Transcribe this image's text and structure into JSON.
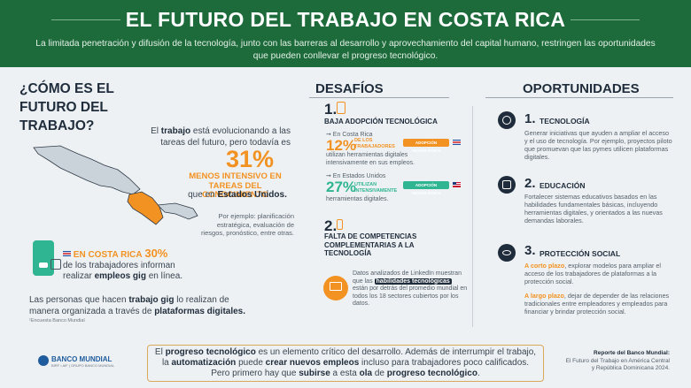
{
  "header": {
    "title": "EL FUTURO DEL TRABAJO EN COSTA RICA",
    "subtitle": "La limitada penetración y difusión de la tecnología, junto con las barreras al desarrollo y aprovechamiento del capital humano, restringen las oportunidades que pueden conllevar el progreso tecnológico."
  },
  "left": {
    "question_title": "¿CÓMO ES EL FUTURO DEL TRABAJO?",
    "intro_pre": "El ",
    "intro_bold": "trabajo",
    "intro_post": " está evolucionando a las tareas del futuro, pero todavía es",
    "big_stat": "31%",
    "big_stat_desc": "MENOS INTENSIVO EN TAREAS DEL CONOCIMIENTO",
    "compare_pre": "que en ",
    "compare_bold": "Estados Unidos.",
    "example_note": "Por ejemplo: planificación estratégica, evaluación de riesgos, pronóstico, entre otras.",
    "gig_country": "EN COSTA RICA",
    "gig_pct": "30%",
    "gig_text_pre": "de los trabajadores informan realizar ",
    "gig_text_bold": "empleos gig",
    "gig_text_post": " en línea.",
    "platforms_pre": "Las personas que hacen ",
    "platforms_bold1": "trabajo gig",
    "platforms_mid": " lo realizan de manera organizada a través de ",
    "platforms_bold2": "plataformas digitales.",
    "survey_note": "¹Encuesta Banco Mundial"
  },
  "desafios": {
    "title": "DESAFÍOS",
    "c1_num": "1.",
    "c1_title": "BAJA ADOPCIÓN TECNOLÓGICA",
    "cr_label": "➞ En Costa Rica",
    "cr_pct": "12%",
    "cr_pct_desc": "DE LOS TRABAJADORES",
    "cr_badge": "ADOPCIÓN TECNOLÓGICA",
    "cr_detail": "utilizan herramientas digitales intensivamente en sus empleos.",
    "us_label": "➞ En Estados Unidos",
    "us_pct": "27%",
    "us_pct_desc": "UTILIZAN INTENSIVAMENTE",
    "us_badge": "ADOPCIÓN TECNOLÓGICA",
    "us_detail": "herramientas digitales.",
    "c2_num": "2.",
    "c2_title": "FALTA DE COMPETENCIAS COMPLEMENTARIAS A LA TECNOLOGÍA",
    "c2_pre": "Datos analizados de LinkedIn muestran que las ",
    "c2_highlight": "habilidades tecnológicas",
    "c2_post": " están por detrás del promedio mundial en todos los 18 sectores cubiertos por los datos."
  },
  "oportunidades": {
    "title": "OPORTUNIDADES",
    "o1_num": "1.",
    "o1_head": "TECNOLOGÍA",
    "o1_body": "Generar iniciativas que ayuden a ampliar el acceso y el uso de tecnología. Por ejemplo, proyectos piloto que promuevan que las pymes utilicen plataformas digitales.",
    "o2_num": "2.",
    "o2_head": "EDUCACIÓN",
    "o2_body": "Fortalecer sistemas educativos basados en las habilidades fundamentales básicas, incluyendo herramientas digitales, y orientados a las nuevas demandas laborales.",
    "o3_num": "3.",
    "o3_head": "PROTECCIÓN SOCIAL",
    "o3_b1_lead": "A corto plazo",
    "o3_b1_rest": ", explorar modelos para ampliar el acceso de los trabajadores de plataformas a la protección social.",
    "o3_b2_lead": "A largo plazo",
    "o3_b2_rest": ", dejar de depender de las relaciones tradicionales entre empleadores y empleados para financiar y brindar protección social."
  },
  "footer": {
    "pre1": "El ",
    "bold1": "progreso tecnológico",
    "mid1": " es un elemento crítico del desarrollo. Además de interrumpir el trabajo, la ",
    "bold2": "automatización",
    "mid2": " puede ",
    "bold3": "crear nuevos empleos",
    "mid3": " incluso para trabajadores poco calificados. Pero primero hay que ",
    "bold4": "subirse",
    "mid4": " a esta ",
    "bold5": "ola",
    "mid5": " de ",
    "bold6": "progreso tecnológico",
    "end": ".",
    "logo_name": "BANCO MUNDIAL",
    "logo_sub": "BIRF • AIF | GRUPO BANCO MUNDIAL",
    "report_title": "Reporte del Banco Mundial:",
    "report_body": "El Futuro del Trabajo en América Central y República Dominicana 2024."
  },
  "colors": {
    "green": "#1d6b3b",
    "orange": "#f29223",
    "teal": "#2fb592",
    "navy": "#1f2c3b"
  }
}
